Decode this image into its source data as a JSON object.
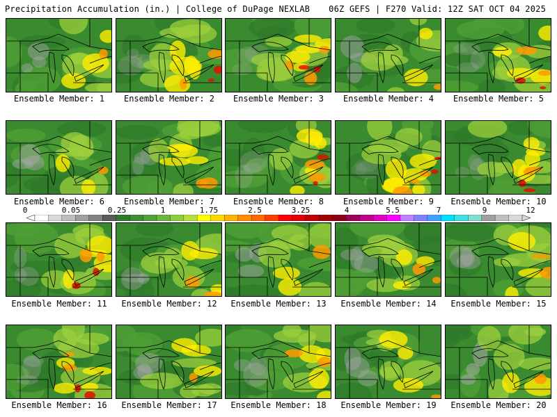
{
  "header": {
    "left_title": "Precipitation Accumulation (in.) | College of DuPage NEXLAB",
    "right_title": "06Z GEFS | F270 Valid: 12Z SAT OCT 04 2025"
  },
  "members": [
    {
      "label": "Ensemble Member: 1",
      "level": 0.35
    },
    {
      "label": "Ensemble Member: 2",
      "level": 0.6
    },
    {
      "label": "Ensemble Member: 3",
      "level": 0.65
    },
    {
      "label": "Ensemble Member: 4",
      "level": 0.3
    },
    {
      "label": "Ensemble Member: 5",
      "level": 0.55
    },
    {
      "label": "Ensemble Member: 6",
      "level": 0.3
    },
    {
      "label": "Ensemble Member: 7",
      "level": 0.5
    },
    {
      "label": "Ensemble Member: 8",
      "level": 0.6
    },
    {
      "label": "Ensemble Member: 9",
      "level": 0.75
    },
    {
      "label": "Ensemble Member: 10",
      "level": 0.6
    },
    {
      "label": "Ensemble Member: 11",
      "level": 0.55
    },
    {
      "label": "Ensemble Member: 12",
      "level": 0.45
    },
    {
      "label": "Ensemble Member: 13",
      "level": 0.3
    },
    {
      "label": "Ensemble Member: 14",
      "level": 0.4
    },
    {
      "label": "Ensemble Member: 15",
      "level": 0.4
    },
    {
      "label": "Ensemble Member: 16",
      "level": 0.55
    },
    {
      "label": "Ensemble Member: 17",
      "level": 0.35
    },
    {
      "label": "Ensemble Member: 18",
      "level": 0.45
    },
    {
      "label": "Ensemble Member: 19",
      "level": 0.35
    },
    {
      "label": "Ensemble Member: 20",
      "level": 0.2
    }
  ],
  "colorbar": {
    "ticks": [
      "0",
      "0.05",
      "0.25",
      "1",
      "1.75",
      "2.5",
      "3.25",
      "4",
      "5.5",
      "7",
      "9",
      "12"
    ],
    "colors": [
      "#ffffff",
      "#d9d9d9",
      "#bdbdbd",
      "#a0a0a0",
      "#828282",
      "#5a5a5a",
      "#2f7a2a",
      "#3e8e35",
      "#4fa33a",
      "#67b83c",
      "#8ccf3c",
      "#b5e03a",
      "#ffff00",
      "#ffd900",
      "#ffb300",
      "#ff8c00",
      "#ff6a00",
      "#ff3c00",
      "#ff0000",
      "#e00000",
      "#c00000",
      "#a00000",
      "#8a0014",
      "#a0005a",
      "#c0008a",
      "#e000c0",
      "#ff00ff",
      "#c080ff",
      "#8080ff",
      "#40a0ff",
      "#00e0ff",
      "#40e0e0",
      "#80e0d0",
      "#a0a0a0",
      "#c0c0c0",
      "#d8d8d8"
    ]
  }
}
